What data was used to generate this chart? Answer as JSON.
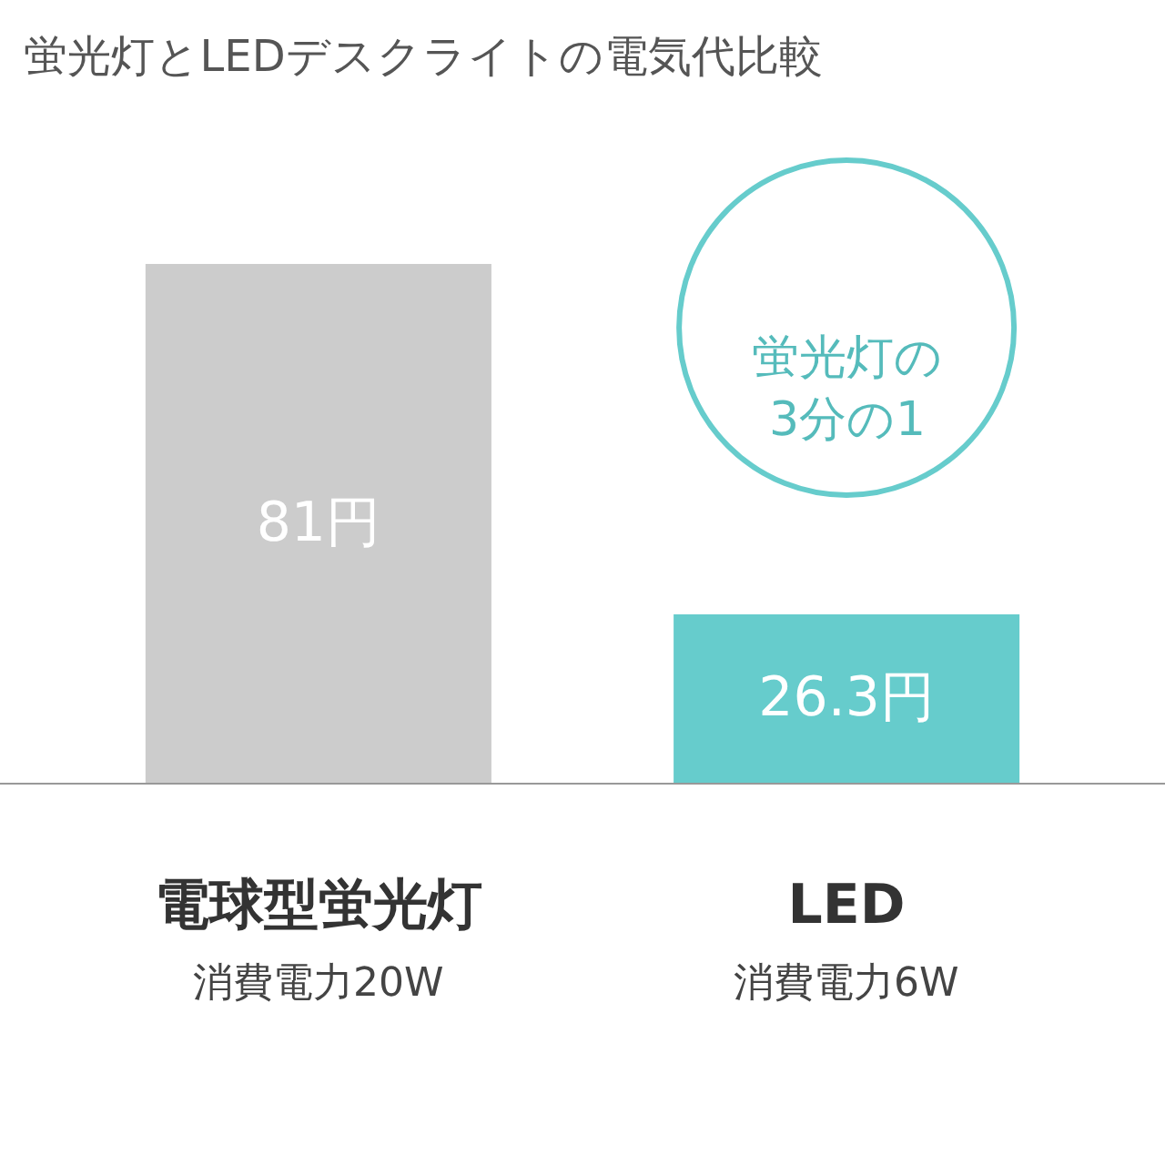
{
  "chart_data": {
    "type": "bar",
    "title": "蛍光灯とLEDデスクライトの電気代比較",
    "categories": [
      "電球型蛍光灯",
      "LED"
    ],
    "values": [
      81,
      26.3
    ],
    "colors": [
      "#cccccc",
      "#66cccc"
    ],
    "value_labels": [
      "81円",
      "26.3円"
    ],
    "annotations": [
      "消費電力20W",
      "消費電力6W",
      "蛍光灯の\n3分の1"
    ],
    "legend": false
  }
}
